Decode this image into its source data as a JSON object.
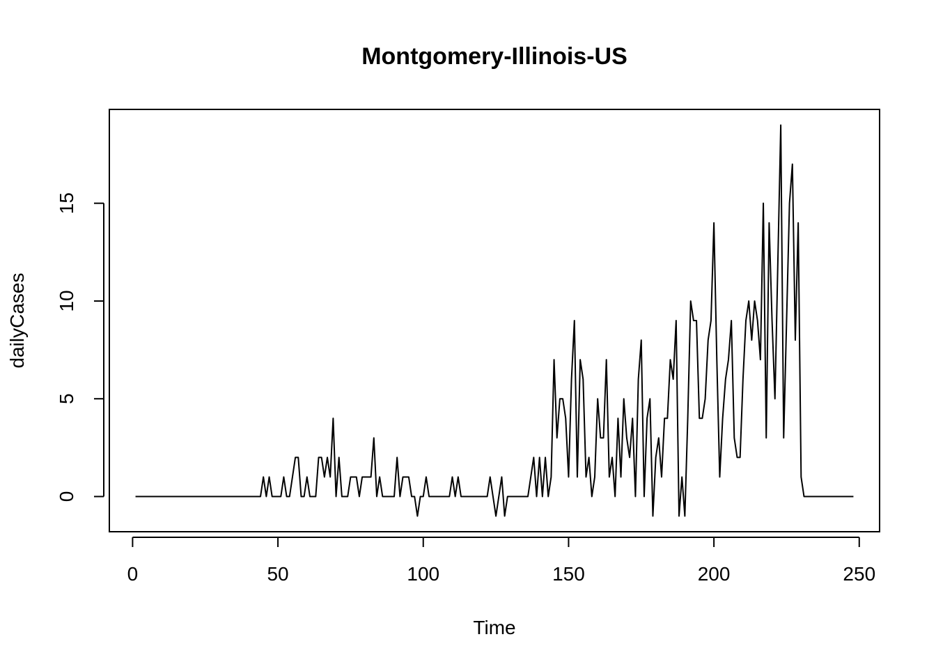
{
  "chart_data": {
    "type": "line",
    "title": "Montgomery-Illinois-US",
    "xlabel": "Time",
    "ylabel": "dailyCases",
    "xlim": [
      -8,
      257
    ],
    "ylim": [
      -1.8,
      19.8
    ],
    "grid": false,
    "x_ticks": [
      0,
      50,
      100,
      150,
      200,
      250
    ],
    "x_tick_labels": [
      "0",
      "50",
      "100",
      "150",
      "200",
      "250"
    ],
    "y_ticks": [
      0,
      5,
      10,
      15
    ],
    "y_tick_labels": [
      "0",
      "5",
      "10",
      "15"
    ],
    "series": [
      {
        "name": "",
        "color": "#000000",
        "x_start": 1,
        "values": [
          0,
          0,
          0,
          0,
          0,
          0,
          0,
          0,
          0,
          0,
          0,
          0,
          0,
          0,
          0,
          0,
          0,
          0,
          0,
          0,
          0,
          0,
          0,
          0,
          0,
          0,
          0,
          0,
          0,
          0,
          0,
          0,
          0,
          0,
          0,
          0,
          0,
          0,
          0,
          0,
          0,
          0,
          0,
          0,
          1,
          0,
          1,
          0,
          0,
          0,
          0,
          1,
          0,
          0,
          1,
          2,
          2,
          0,
          0,
          1,
          0,
          0,
          0,
          2,
          2,
          1,
          2,
          1,
          4,
          0,
          2,
          0,
          0,
          0,
          1,
          1,
          1,
          0,
          1,
          1,
          1,
          1,
          3,
          0,
          1,
          0,
          0,
          0,
          0,
          0,
          2,
          0,
          1,
          1,
          1,
          0,
          0,
          -1,
          0,
          0,
          1,
          0,
          0,
          0,
          0,
          0,
          0,
          0,
          0,
          1,
          0,
          1,
          0,
          0,
          0,
          0,
          0,
          0,
          0,
          0,
          0,
          0,
          1,
          0,
          -1,
          0,
          1,
          -1,
          0,
          0,
          0,
          0,
          0,
          0,
          0,
          0,
          1,
          2,
          0,
          2,
          0,
          2,
          0,
          1,
          7,
          3,
          5,
          5,
          4,
          1,
          6,
          9,
          1,
          7,
          6,
          1,
          2,
          0,
          1,
          5,
          3,
          3,
          7,
          1,
          2,
          0,
          4,
          1,
          5,
          3,
          2,
          4,
          0,
          6,
          8,
          0,
          4,
          5,
          -1,
          2,
          3,
          1,
          4,
          4,
          7,
          6,
          9,
          -1,
          1,
          -1,
          4,
          10,
          9,
          9,
          4,
          4,
          5,
          8,
          9,
          14,
          7,
          1,
          4,
          6,
          7,
          9,
          3,
          2,
          2,
          6,
          9,
          10,
          8,
          10,
          9,
          7,
          15,
          3,
          14,
          9,
          5,
          12,
          19,
          3,
          9,
          15,
          17,
          8,
          14,
          1,
          0,
          0,
          0,
          0,
          0,
          0,
          0,
          0,
          0,
          0,
          0,
          0,
          0,
          0,
          0,
          0,
          0,
          0
        ]
      }
    ]
  }
}
